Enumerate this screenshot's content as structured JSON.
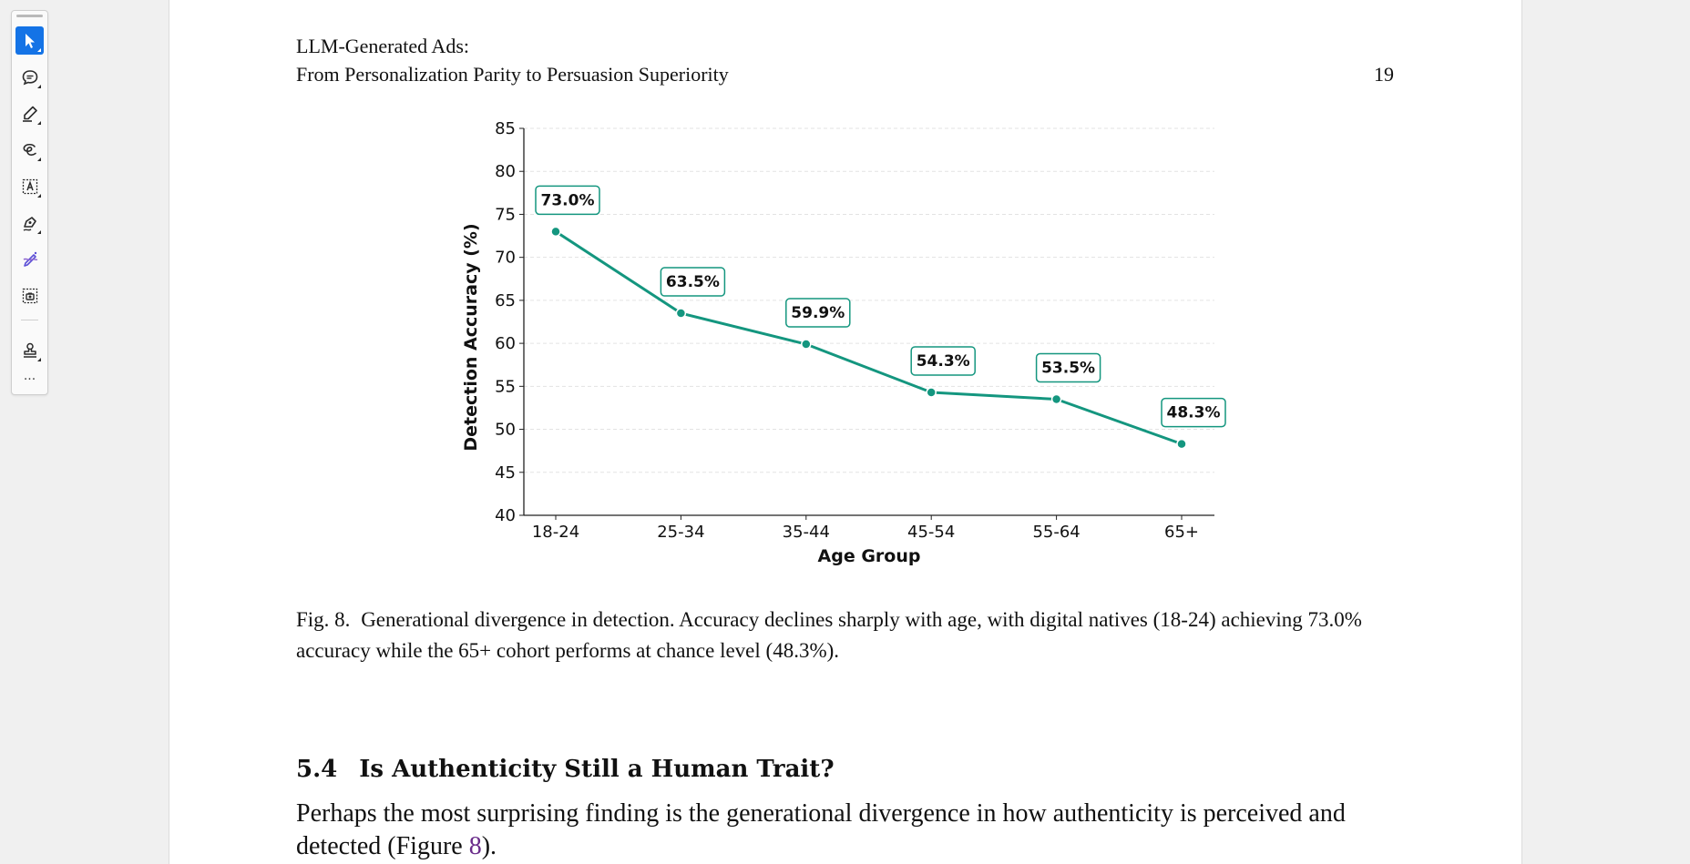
{
  "toolbar": {
    "tools": [
      {
        "name": "select-tool",
        "icon": "cursor-arrow-icon",
        "active": true
      },
      {
        "name": "comment-tool",
        "icon": "comment-bubble-icon",
        "active": false
      },
      {
        "name": "highlight-tool",
        "icon": "highlighter-pen-icon",
        "active": false
      },
      {
        "name": "draw-tool",
        "icon": "freehand-loop-icon",
        "active": false
      },
      {
        "name": "text-box-tool",
        "icon": "text-box-icon",
        "active": false
      },
      {
        "name": "fill-sign-tool",
        "icon": "pen-sign-icon",
        "active": false
      },
      {
        "name": "ai-pen-tool",
        "icon": "magic-pen-icon",
        "active": false
      },
      {
        "name": "snapshot-tool",
        "icon": "camera-select-icon",
        "active": false
      },
      {
        "name": "stamp-tool",
        "icon": "stamp-icon",
        "active": false
      }
    ],
    "more_label": "···"
  },
  "header": {
    "line1": "LLM-Generated Ads:",
    "line2": "From Personalization Parity to Persuasion Superiority",
    "page_number": "19"
  },
  "chart_data": {
    "type": "line",
    "categories": [
      "18-24",
      "25-34",
      "35-44",
      "45-54",
      "55-64",
      "65+"
    ],
    "values": [
      73.0,
      63.5,
      59.9,
      54.3,
      53.5,
      48.3
    ],
    "data_labels": [
      "73.0%",
      "63.5%",
      "59.9%",
      "54.3%",
      "53.5%",
      "48.3%"
    ],
    "xlabel": "Age Group",
    "ylabel": "Detection Accuracy (%)",
    "ylim": [
      40,
      85
    ],
    "yticks": [
      40,
      45,
      50,
      55,
      60,
      65,
      70,
      75,
      80,
      85
    ],
    "grid": "horizontal dashed",
    "color": "#14967f"
  },
  "caption": {
    "fig_label": "Fig. 8.",
    "text": "Generational divergence in detection. Accuracy declines sharply with age, with digital natives (18-24) achieving 73.0% accuracy while the 65+ cohort performs at chance level (48.3%)."
  },
  "section": {
    "number": "5.4",
    "title": "Is Authenticity Still a Human Trait?"
  },
  "body": {
    "text_before": "Perhaps the most surprising finding is the generational divergence in how authenticity is perceived and detected (Figure ",
    "fig_ref": "8",
    "text_after": ")."
  }
}
